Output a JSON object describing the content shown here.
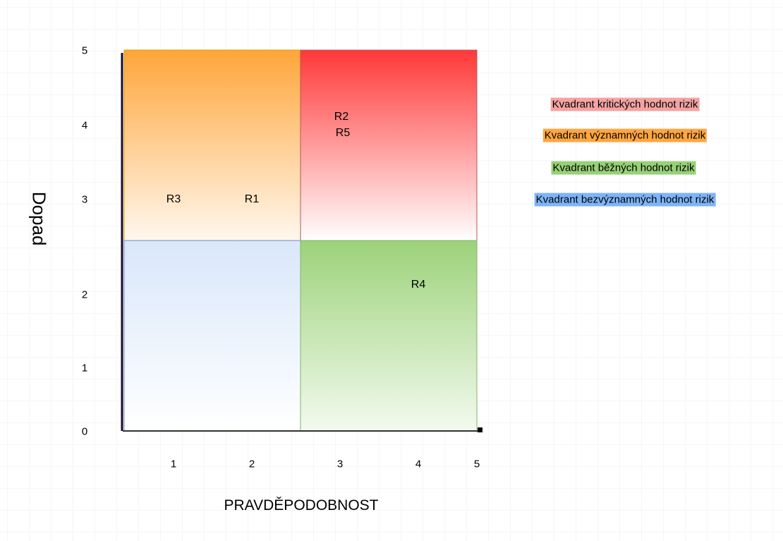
{
  "axes": {
    "y_label": "Dopad",
    "x_label": "PRAVDĚPODOBNOST",
    "y_ticks": [
      "5",
      "4",
      "3",
      "2",
      "1",
      "0"
    ],
    "x_ticks": [
      "1",
      "2",
      "3",
      "4",
      "5"
    ]
  },
  "risks": [
    "R3",
    "R1",
    "R2",
    "R5",
    "R4"
  ],
  "legend": [
    "Kvadrant kritických hodnot rizik",
    "Kvadrant významných hodnot rizik",
    "Kvadrant běžných hodnot rizik",
    "Kvadrant bezvýznamných hodnot rizik"
  ]
}
